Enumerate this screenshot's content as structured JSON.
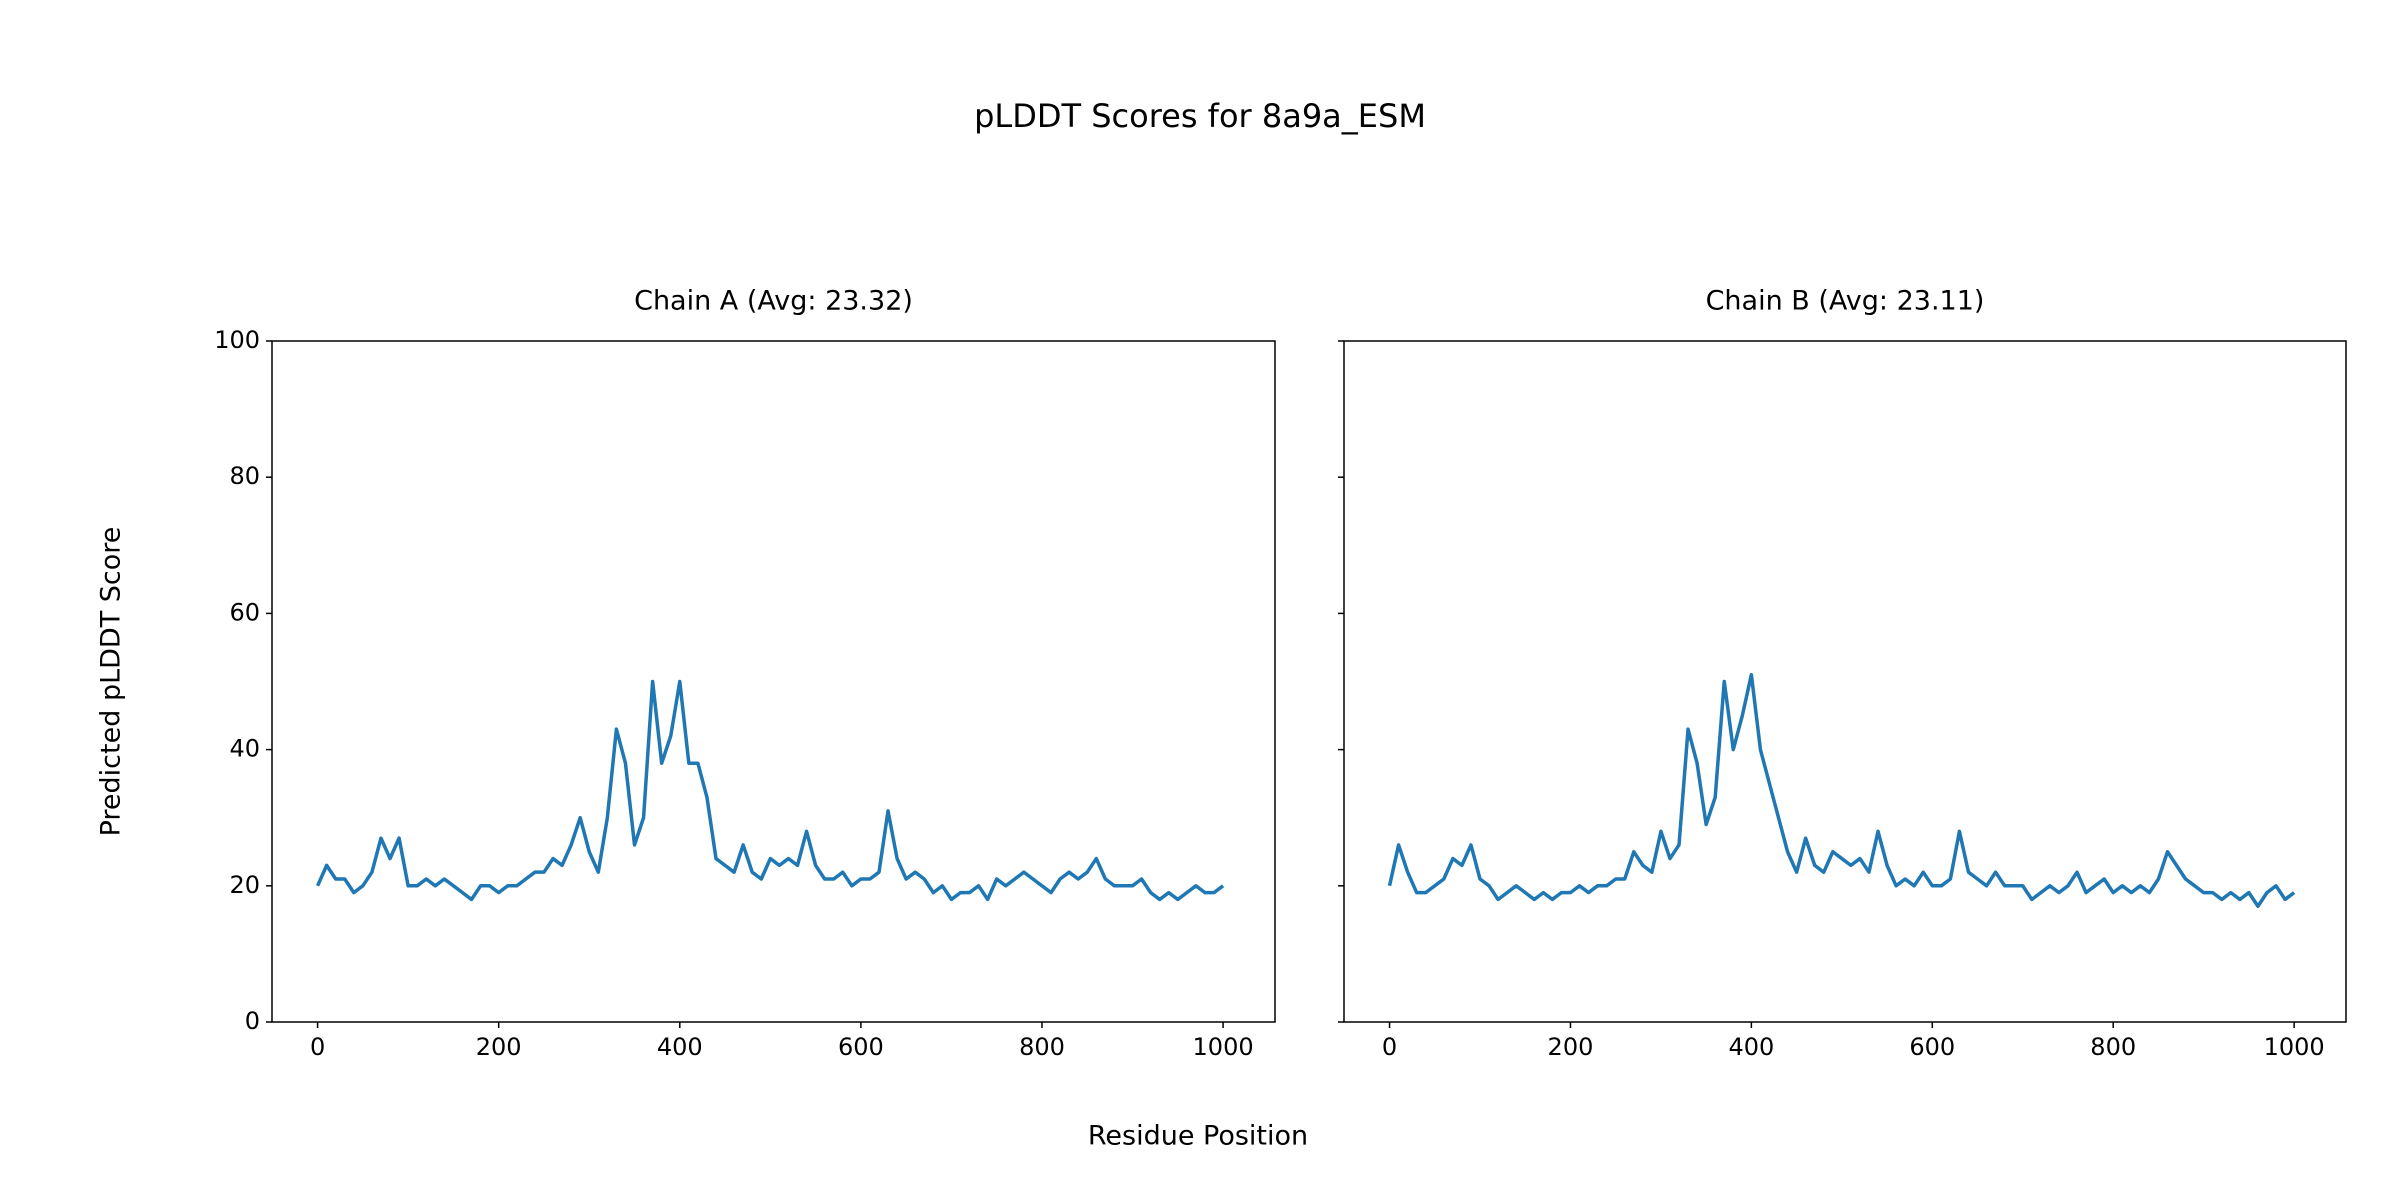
{
  "title": "pLDDT Scores for 8a9a_ESM",
  "xlabel": "Residue Position",
  "chart_data": [
    {
      "type": "line",
      "title": "Chain A (Avg: 23.32)",
      "ylabel": "Predicted pLDDT Score",
      "color": "#1f77b4",
      "xlim": [
        -50.35,
        1057.35
      ],
      "ylim": [
        0,
        100
      ],
      "xticks": [
        0,
        200,
        400,
        600,
        800,
        1000
      ],
      "yticks": [
        0,
        20,
        40,
        60,
        80,
        100
      ],
      "sharey": false,
      "x": [
        0,
        10,
        20,
        30,
        40,
        50,
        60,
        70,
        80,
        90,
        100,
        110,
        120,
        130,
        140,
        150,
        160,
        170,
        180,
        190,
        200,
        210,
        220,
        230,
        240,
        250,
        260,
        270,
        280,
        290,
        300,
        310,
        320,
        330,
        340,
        350,
        360,
        370,
        380,
        390,
        400,
        410,
        420,
        430,
        440,
        450,
        460,
        470,
        480,
        490,
        500,
        510,
        520,
        530,
        540,
        550,
        560,
        570,
        580,
        590,
        600,
        610,
        620,
        630,
        640,
        650,
        660,
        670,
        680,
        690,
        700,
        710,
        720,
        730,
        740,
        750,
        760,
        770,
        780,
        790,
        800,
        810,
        820,
        830,
        840,
        850,
        860,
        870,
        880,
        890,
        900,
        910,
        920,
        930,
        940,
        950,
        960,
        970,
        980,
        990,
        1000
      ],
      "values": [
        20,
        23,
        21,
        21,
        19,
        20,
        22,
        27,
        24,
        27,
        20,
        20,
        21,
        20,
        21,
        20,
        19,
        18,
        20,
        20,
        19,
        20,
        20,
        21,
        22,
        22,
        24,
        23,
        26,
        30,
        25,
        22,
        30,
        43,
        38,
        26,
        30,
        50,
        38,
        42,
        50,
        38,
        38,
        33,
        24,
        23,
        22,
        26,
        22,
        21,
        24,
        23,
        24,
        23,
        28,
        23,
        21,
        21,
        22,
        20,
        21,
        21,
        22,
        31,
        24,
        21,
        22,
        21,
        19,
        20,
        18,
        19,
        19,
        20,
        18,
        21,
        20,
        21,
        22,
        21,
        20,
        19,
        21,
        22,
        21,
        22,
        24,
        21,
        20,
        20,
        20,
        21,
        19,
        18,
        19,
        18,
        19,
        20,
        19,
        19,
        20
      ]
    },
    {
      "type": "line",
      "title": "Chain B (Avg: 23.11)",
      "color": "#1f77b4",
      "xlim": [
        -50.35,
        1057.35
      ],
      "ylim": [
        0,
        100
      ],
      "xticks": [
        0,
        200,
        400,
        600,
        800,
        1000
      ],
      "yticks": [
        0,
        20,
        40,
        60,
        80,
        100
      ],
      "sharey": true,
      "x": [
        0,
        10,
        20,
        30,
        40,
        50,
        60,
        70,
        80,
        90,
        100,
        110,
        120,
        130,
        140,
        150,
        160,
        170,
        180,
        190,
        200,
        210,
        220,
        230,
        240,
        250,
        260,
        270,
        280,
        290,
        300,
        310,
        320,
        330,
        340,
        350,
        360,
        370,
        380,
        390,
        400,
        410,
        420,
        430,
        440,
        450,
        460,
        470,
        480,
        490,
        500,
        510,
        520,
        530,
        540,
        550,
        560,
        570,
        580,
        590,
        600,
        610,
        620,
        630,
        640,
        650,
        660,
        670,
        680,
        690,
        700,
        710,
        720,
        730,
        740,
        750,
        760,
        770,
        780,
        790,
        800,
        810,
        820,
        830,
        840,
        850,
        860,
        870,
        880,
        890,
        900,
        910,
        920,
        930,
        940,
        950,
        960,
        970,
        980,
        990,
        1000
      ],
      "values": [
        20,
        26,
        22,
        19,
        19,
        20,
        21,
        24,
        23,
        26,
        21,
        20,
        18,
        19,
        20,
        19,
        18,
        19,
        18,
        19,
        19,
        20,
        19,
        20,
        20,
        21,
        21,
        25,
        23,
        22,
        28,
        24,
        26,
        43,
        38,
        29,
        33,
        50,
        40,
        45,
        51,
        40,
        35,
        30,
        25,
        22,
        27,
        23,
        22,
        25,
        24,
        23,
        24,
        22,
        28,
        23,
        20,
        21,
        20,
        22,
        20,
        20,
        21,
        28,
        22,
        21,
        20,
        22,
        20,
        20,
        20,
        18,
        19,
        20,
        19,
        20,
        22,
        19,
        20,
        21,
        19,
        20,
        19,
        20,
        19,
        21,
        25,
        23,
        21,
        20,
        19,
        19,
        18,
        19,
        18,
        19,
        17,
        19,
        20,
        18,
        19
      ]
    }
  ]
}
